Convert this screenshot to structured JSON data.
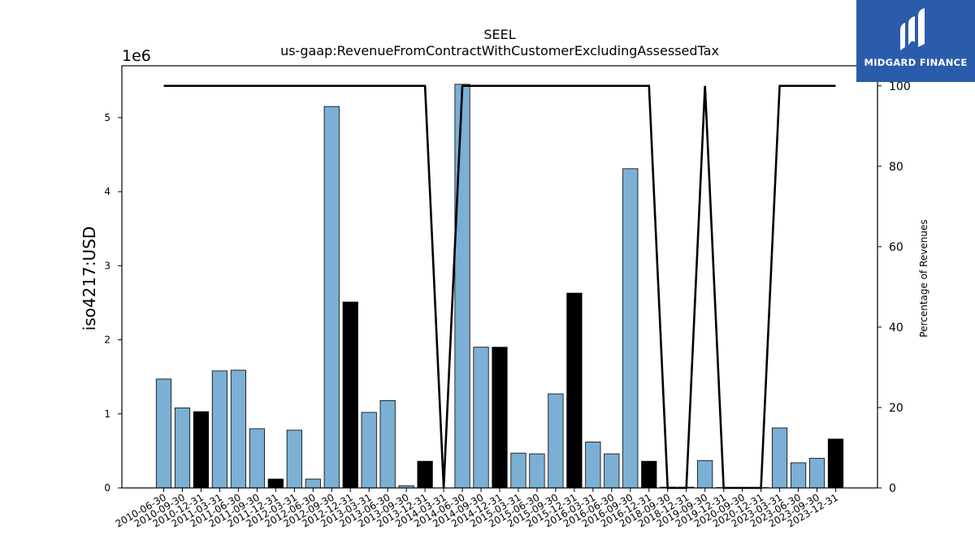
{
  "chart_data": {
    "type": "bar",
    "title": "SEEL",
    "subtitle": "us-gaap:RevenueFromContractWithCustomerExcludingAssessedTax",
    "ylabel": "iso4217:USD",
    "y_offset_label": "1e6",
    "y2label": "Percentage of Revenues",
    "ylim": [
      0,
      5700000
    ],
    "y2lim": [
      0,
      105
    ],
    "yticks": [
      0,
      1,
      2,
      3,
      4,
      5
    ],
    "y2ticks": [
      0,
      20,
      40,
      60,
      80,
      100
    ],
    "categories": [
      "2010-06-30",
      "2010-09-30",
      "2010-12-31",
      "2011-03-31",
      "2011-06-30",
      "2011-09-30",
      "2011-12-31",
      "2012-03-31",
      "2012-06-30",
      "2012-09-30",
      "2012-12-31",
      "2013-03-31",
      "2013-06-30",
      "2013-09-30",
      "2013-12-31",
      "2014-03-31",
      "2014-06-30",
      "2014-09-30",
      "2014-12-31",
      "2015-03-31",
      "2015-06-30",
      "2015-09-30",
      "2015-12-31",
      "2016-03-31",
      "2016-06-30",
      "2016-09-30",
      "2016-12-31",
      "2018-09-30",
      "2018-12-31",
      "2019-09-30",
      "2019-12-31",
      "2020-09-30",
      "2020-12-31",
      "2023-03-31",
      "2023-06-30",
      "2023-09-30",
      "2023-12-31"
    ],
    "values": [
      1470000,
      1080000,
      1030000,
      1580000,
      1590000,
      800000,
      120000,
      780000,
      120000,
      5150000,
      2510000,
      1020000,
      1180000,
      30000,
      360000,
      0,
      5450000,
      1900000,
      1900000,
      470000,
      460000,
      1270000,
      2630000,
      620000,
      460000,
      4310000,
      360000,
      10000,
      10000,
      370000,
      5000,
      5000,
      5000,
      810000,
      340000,
      400000,
      660000
    ],
    "annual": [
      false,
      false,
      true,
      false,
      false,
      false,
      true,
      false,
      false,
      false,
      true,
      false,
      false,
      false,
      true,
      false,
      false,
      false,
      true,
      false,
      false,
      false,
      true,
      false,
      false,
      false,
      true,
      false,
      false,
      false,
      false,
      false,
      false,
      false,
      false,
      false,
      true
    ],
    "percentage": [
      100,
      100,
      100,
      100,
      100,
      100,
      100,
      100,
      100,
      100,
      100,
      100,
      100,
      100,
      100,
      0,
      100,
      100,
      100,
      100,
      100,
      100,
      100,
      100,
      100,
      100,
      100,
      0,
      0,
      100,
      0,
      0,
      0,
      100,
      100,
      100,
      100
    ],
    "colors": {
      "quarterly": "#7bafd4",
      "annual": "#000000",
      "line": "#000000"
    }
  },
  "logo": {
    "name": "MIDGARD FINANCE",
    "color": "#2b5cab"
  }
}
